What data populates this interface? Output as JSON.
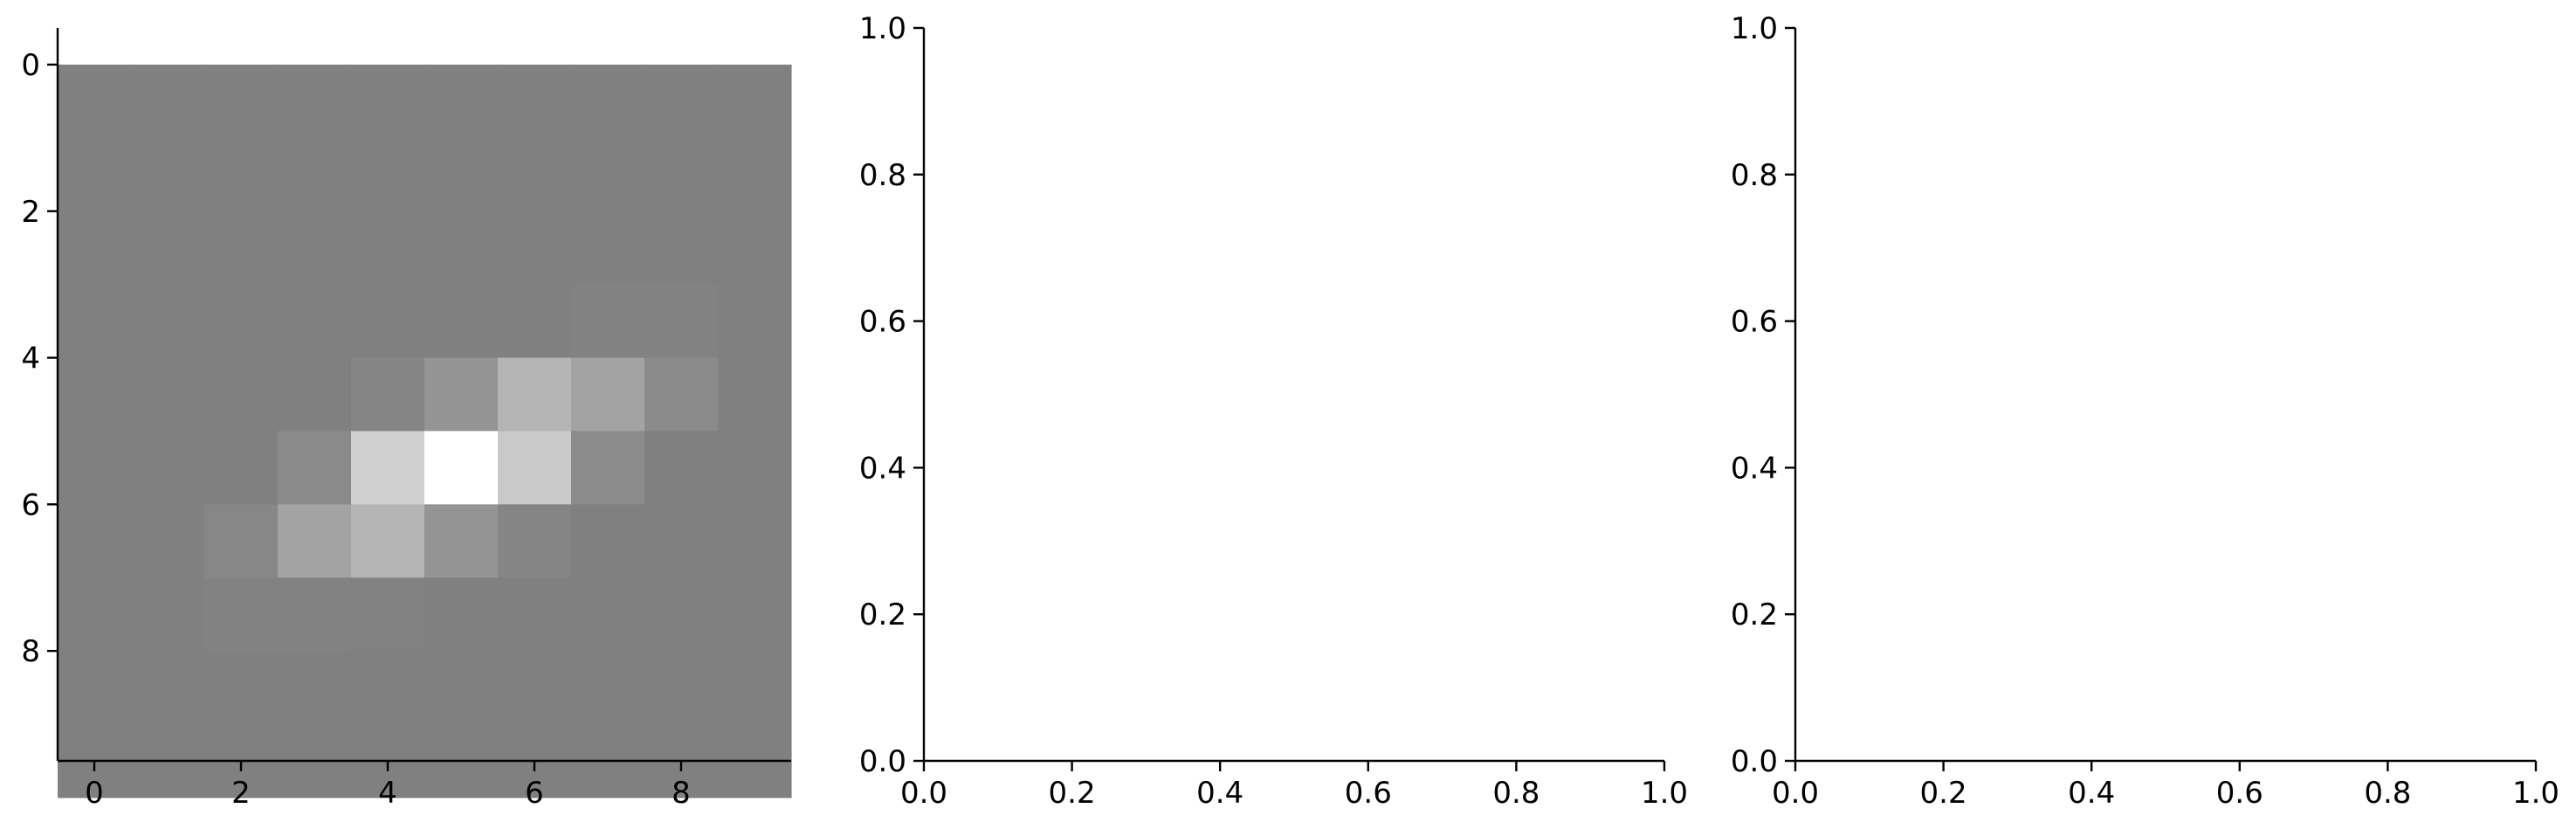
{
  "chart_data": [
    {
      "type": "heatmap",
      "title": "",
      "xlabel": "",
      "ylabel": "",
      "xlim": [
        -0.5,
        9.5
      ],
      "ylim": [
        9.5,
        -0.5
      ],
      "xticks": [
        0,
        2,
        4,
        6,
        8
      ],
      "yticks": [
        0,
        2,
        4,
        6,
        8
      ],
      "xtick_labels": [
        "0",
        "2",
        "4",
        "6",
        "8"
      ],
      "ytick_labels": [
        "0",
        "2",
        "4",
        "6",
        "8"
      ],
      "colormap": "gray",
      "grid": false,
      "z": [
        [
          0.5,
          0.5,
          0.5,
          0.5,
          0.5,
          0.5,
          0.5,
          0.5,
          0.5,
          0.5
        ],
        [
          0.5,
          0.5,
          0.5,
          0.5,
          0.5,
          0.5,
          0.5,
          0.5,
          0.5,
          0.5
        ],
        [
          0.5,
          0.5,
          0.5,
          0.5,
          0.5,
          0.5,
          0.5,
          0.5,
          0.5,
          0.5
        ],
        [
          0.5,
          0.5,
          0.5,
          0.5,
          0.5,
          0.5,
          0.5,
          0.51,
          0.51,
          0.5
        ],
        [
          0.5,
          0.5,
          0.5,
          0.5,
          0.52,
          0.58,
          0.71,
          0.64,
          0.54,
          0.5
        ],
        [
          0.5,
          0.5,
          0.5,
          0.54,
          0.81,
          1.0,
          0.79,
          0.55,
          0.5,
          0.5
        ],
        [
          0.5,
          0.5,
          0.53,
          0.64,
          0.71,
          0.58,
          0.52,
          0.5,
          0.5,
          0.5
        ],
        [
          0.5,
          0.5,
          0.51,
          0.51,
          0.505,
          0.5,
          0.5,
          0.5,
          0.5,
          0.5
        ],
        [
          0.5,
          0.5,
          0.5,
          0.5,
          0.5,
          0.5,
          0.5,
          0.5,
          0.5,
          0.5
        ],
        [
          0.5,
          0.5,
          0.5,
          0.5,
          0.5,
          0.5,
          0.5,
          0.5,
          0.5,
          0.5
        ]
      ]
    },
    {
      "type": "line",
      "title": "",
      "xlabel": "",
      "ylabel": "",
      "xlim": [
        0,
        1
      ],
      "ylim": [
        0,
        1
      ],
      "xticks": [
        0,
        0.2,
        0.4,
        0.6,
        0.8,
        1.0
      ],
      "yticks": [
        0,
        0.2,
        0.4,
        0.6,
        0.8,
        1.0
      ],
      "xtick_labels": [
        "0.0",
        "0.2",
        "0.4",
        "0.6",
        "0.8",
        "1.0"
      ],
      "ytick_labels": [
        "0.0",
        "0.2",
        "0.4",
        "0.6",
        "0.8",
        "1.0"
      ],
      "grid": false,
      "series": []
    },
    {
      "type": "line",
      "title": "",
      "xlabel": "",
      "ylabel": "",
      "xlim": [
        0,
        1
      ],
      "ylim": [
        0,
        1
      ],
      "xticks": [
        0,
        0.2,
        0.4,
        0.6,
        0.8,
        1.0
      ],
      "yticks": [
        0,
        0.2,
        0.4,
        0.6,
        0.8,
        1.0
      ],
      "xtick_labels": [
        "0.0",
        "0.2",
        "0.4",
        "0.6",
        "0.8",
        "1.0"
      ],
      "ytick_labels": [
        "0.0",
        "0.2",
        "0.4",
        "0.6",
        "0.8",
        "1.0"
      ],
      "grid": false,
      "series": []
    }
  ]
}
